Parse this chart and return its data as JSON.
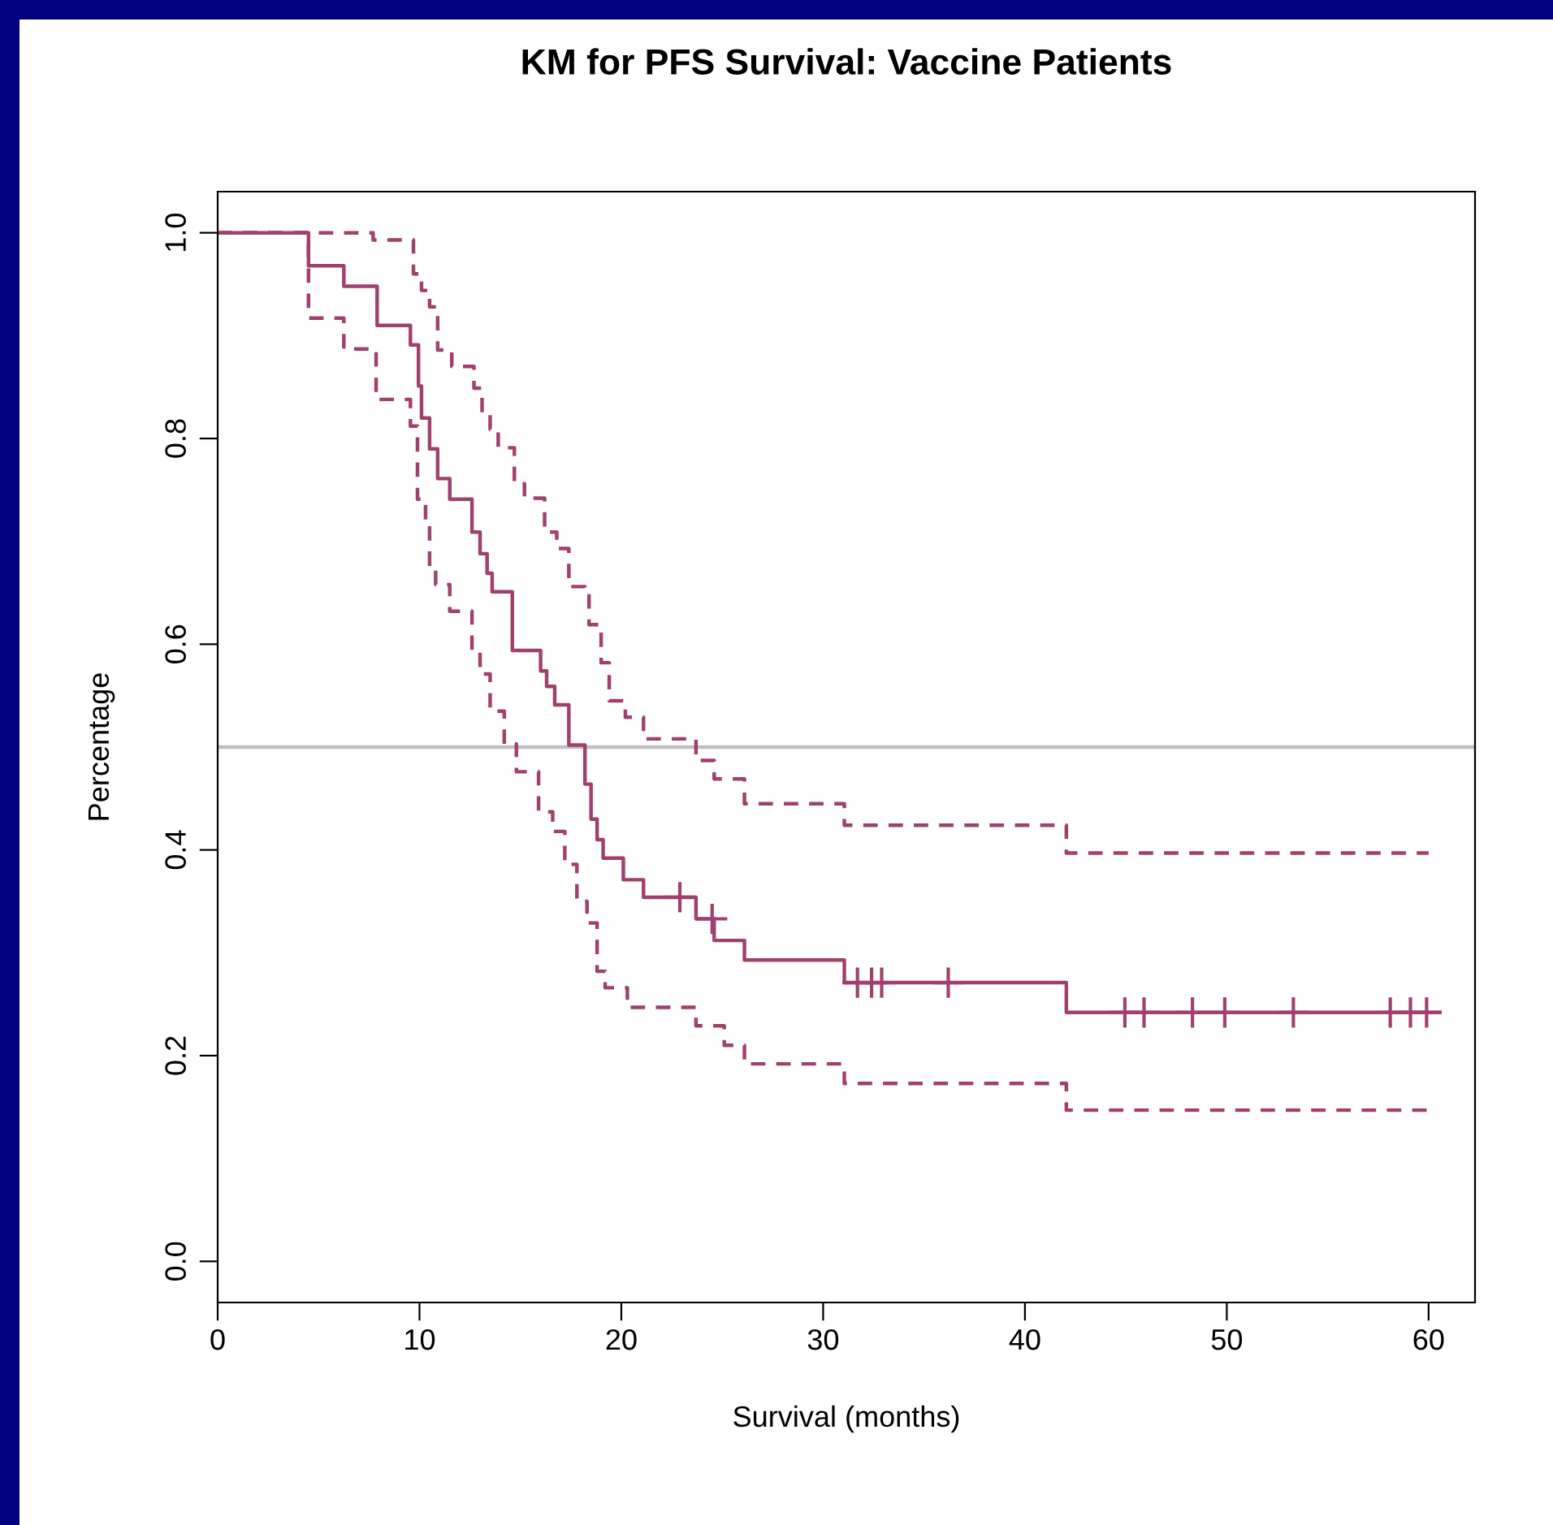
{
  "chart_data": {
    "type": "step",
    "title": "KM for PFS Survival: Vaccine Patients",
    "xlabel": "Survival (months)",
    "ylabel": "Percentage",
    "xlim": [
      0,
      62.3
    ],
    "xticks": [
      0,
      10,
      20,
      30,
      40,
      50,
      60
    ],
    "ylim": [
      -0.04,
      1.04
    ],
    "yticks": [
      {
        "value": 0,
        "label": "0.0"
      },
      0.2,
      0.4,
      0.6,
      0.8,
      {
        "value": 1,
        "label": "1.0"
      }
    ],
    "grid": false,
    "legend": false,
    "ref_lines": [
      {
        "axis": "y",
        "value": 0.5,
        "color": "#c0c0c0",
        "line_style": "solid"
      }
    ],
    "series": [
      {
        "color": "#a0406e",
        "line_style": "solid",
        "x": [
          0,
          4.5,
          6.25,
          7.9,
          9.55,
          9.95,
          10.1,
          10.5,
          10.9,
          11.5,
          12.6,
          13.0,
          13.35,
          13.6,
          14.6,
          16.0,
          16.3,
          16.7,
          17.4,
          18.2,
          18.5,
          18.8,
          19.1,
          20.1,
          21.1,
          23.7,
          24.6,
          26.1,
          31.05,
          42.05,
          60.55
        ],
        "values": [
          1.0,
          0.968,
          0.948,
          0.91,
          0.891,
          0.851,
          0.82,
          0.79,
          0.761,
          0.741,
          0.709,
          0.688,
          0.669,
          0.651,
          0.594,
          0.574,
          0.559,
          0.541,
          0.502,
          0.464,
          0.43,
          0.41,
          0.392,
          0.371,
          0.354,
          0.333,
          0.312,
          0.293,
          0.271,
          0.242,
          0.242
        ]
      },
      {
        "color": "#a0406e",
        "line_style": "dashed",
        "x": [
          0,
          7.7,
          9.7,
          10.1,
          10.5,
          10.9,
          11.6,
          12.7,
          13.1,
          13.5,
          13.9,
          14.7,
          15.2,
          16.2,
          16.8,
          17.4,
          18.2,
          18.4,
          19.0,
          19.4,
          20.2,
          21.1,
          23.7,
          24.6,
          26.1,
          31.05,
          42.05,
          60.0
        ],
        "values": [
          1.0,
          0.993,
          0.96,
          0.944,
          0.928,
          0.886,
          0.87,
          0.849,
          0.825,
          0.809,
          0.791,
          0.756,
          0.742,
          0.709,
          0.693,
          0.656,
          0.651,
          0.619,
          0.582,
          0.545,
          0.529,
          0.508,
          0.487,
          0.469,
          0.445,
          0.424,
          0.397,
          0.397
        ]
      },
      {
        "color": "#a0406e",
        "line_style": "dashed",
        "x": [
          0,
          4.5,
          6.25,
          7.85,
          9.55,
          9.9,
          10.3,
          10.5,
          10.8,
          11.5,
          12.6,
          13.0,
          13.5,
          14.2,
          14.8,
          15.9,
          16.6,
          17.2,
          17.8,
          18.3,
          18.8,
          19.2,
          20.3,
          21.1,
          23.7,
          25.1,
          26.1,
          31.05,
          42.05,
          60.0
        ],
        "values": [
          1.0,
          0.917,
          0.887,
          0.838,
          0.812,
          0.741,
          0.72,
          0.675,
          0.658,
          0.632,
          0.593,
          0.571,
          0.535,
          0.503,
          0.476,
          0.437,
          0.418,
          0.386,
          0.35,
          0.329,
          0.282,
          0.266,
          0.247,
          0.247,
          0.229,
          0.21,
          0.192,
          0.173,
          0.147,
          0.147
        ]
      },
      {
        "type": "scatter",
        "color": "#a0406e",
        "marker": "cross",
        "x": [
          22.9,
          24.5,
          31.7,
          32.4,
          32.9,
          36.2,
          44.95,
          45.9,
          48.3,
          49.9,
          53.3,
          58.1,
          59.1,
          59.9
        ],
        "values": [
          0.354,
          0.333,
          0.271,
          0.271,
          0.271,
          0.271,
          0.242,
          0.242,
          0.242,
          0.242,
          0.242,
          0.242,
          0.242,
          0.242
        ]
      }
    ]
  }
}
